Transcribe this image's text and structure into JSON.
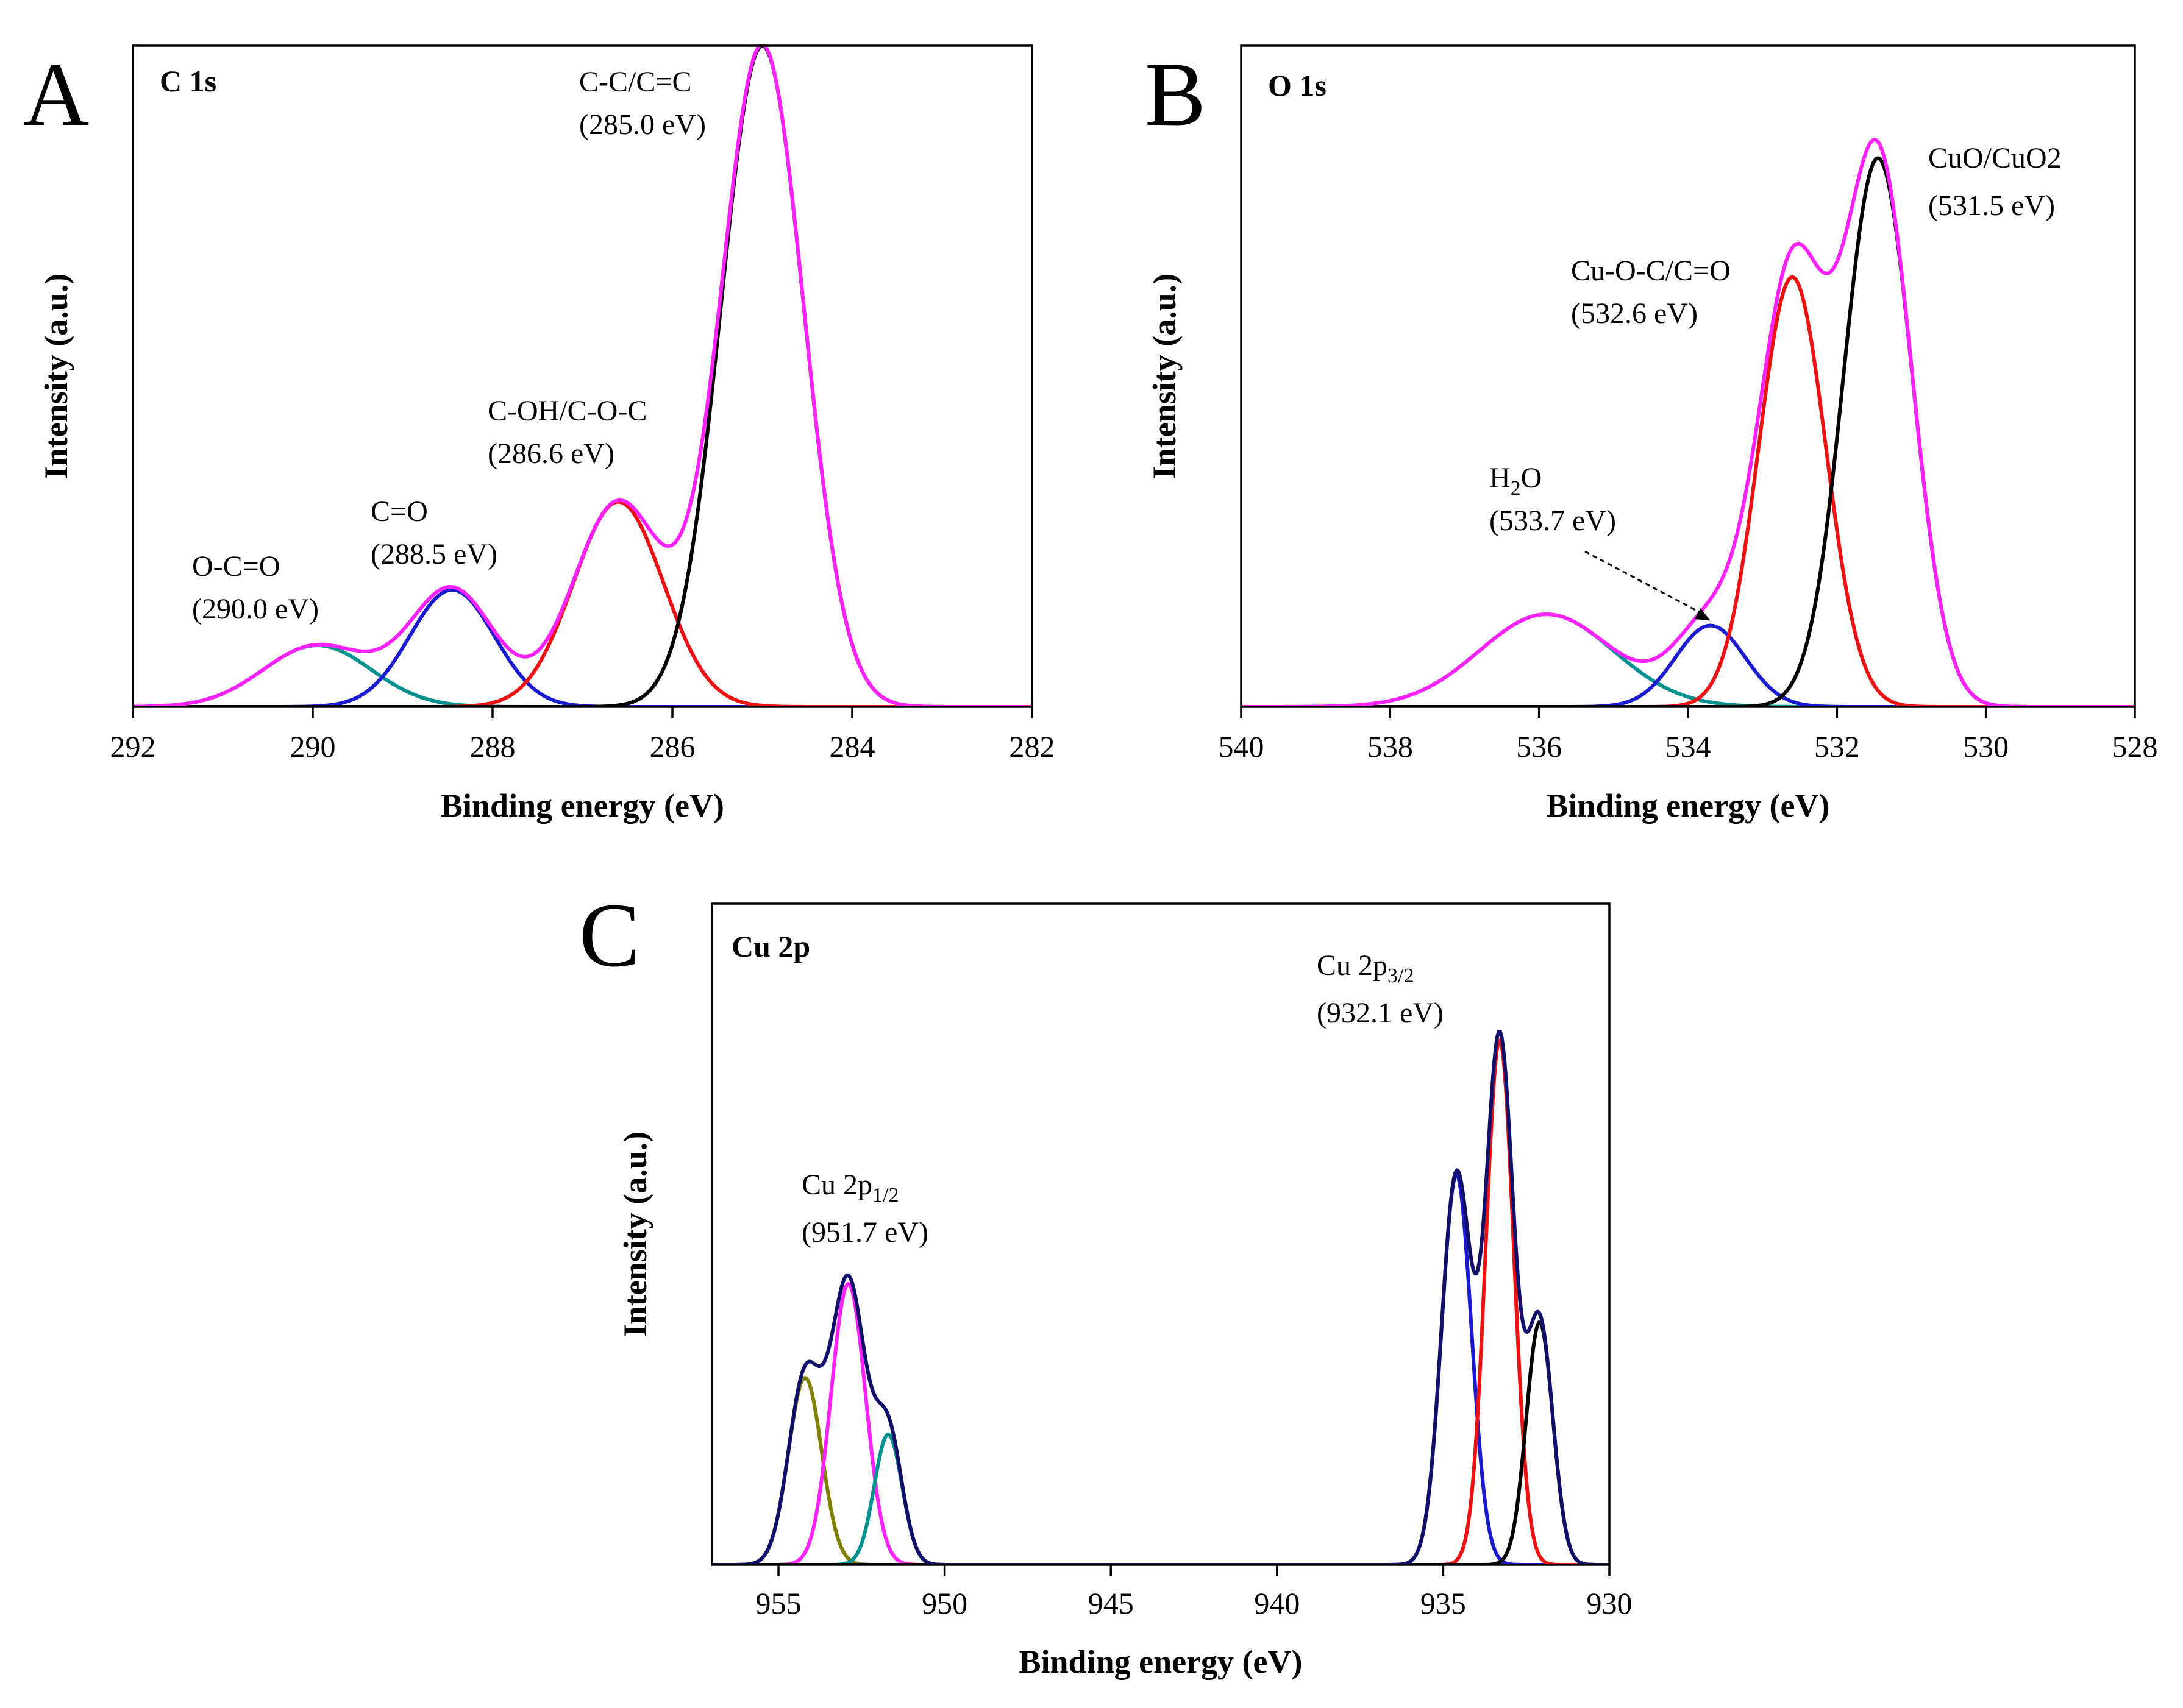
{
  "chart_data": [
    {
      "type": "line",
      "letter": "A",
      "title": "C 1s",
      "xlabel": "Binding energy (eV)",
      "ylabel": "Intensity (a.u.)",
      "xlim": [
        292,
        282
      ],
      "xticks": [
        292,
        290,
        288,
        286,
        284,
        282
      ],
      "ylim": [
        0,
        1.0
      ],
      "grid": false,
      "series": [
        {
          "color": "#009090",
          "peaks": [
            {
              "center": 289.95,
              "height": 0.093,
              "sigma": 0.6
            }
          ]
        },
        {
          "color": "#1a1ad0",
          "peaks": [
            {
              "center": 288.45,
              "height": 0.177,
              "sigma": 0.47
            }
          ]
        },
        {
          "color": "#ee1111",
          "peaks": [
            {
              "center": 286.6,
              "height": 0.31,
              "sigma": 0.5
            }
          ]
        },
        {
          "color": "#000000",
          "peaks": [
            {
              "center": 285.0,
              "height": 1.0,
              "sigma": 0.46
            }
          ]
        },
        {
          "color": "#ff22ff",
          "peaks": [
            {
              "center": 289.95,
              "height": 0.093,
              "sigma": 0.6
            },
            {
              "center": 288.45,
              "height": 0.177,
              "sigma": 0.47
            },
            {
              "center": 286.6,
              "height": 0.31,
              "sigma": 0.5
            },
            {
              "center": 285.0,
              "height": 1.0,
              "sigma": 0.46
            }
          ]
        }
      ],
      "annotations": [
        {
          "name": "O-C=O",
          "lines": [
            "O-C=O",
            "(290.0 eV)"
          ]
        },
        {
          "name": "C=O",
          "lines": [
            "C=O",
            "(288.5 eV)"
          ]
        },
        {
          "name": "C-OH/C-O-C",
          "lines": [
            "C-OH/C-O-C",
            "(286.6 eV)"
          ]
        },
        {
          "name": "C-C/C=C",
          "lines": [
            "C-C/C=C",
            "(285.0 eV)"
          ]
        }
      ]
    },
    {
      "type": "line",
      "letter": "B",
      "title": "O 1s",
      "xlabel": "Binding energy (eV)",
      "ylabel": "Intensity (a.u.)",
      "xlim": [
        540,
        528
      ],
      "xticks": [
        540,
        538,
        536,
        534,
        532,
        530,
        528
      ],
      "ylim": [
        0,
        1.0
      ],
      "grid": false,
      "series": [
        {
          "color": "#009090",
          "peaks": [
            {
              "center": 535.9,
              "height": 0.14,
              "sigma": 0.9
            }
          ]
        },
        {
          "color": "#1a1ad0",
          "peaks": [
            {
              "center": 533.7,
              "height": 0.123,
              "sigma": 0.47
            }
          ]
        },
        {
          "color": "#ee1111",
          "peaks": [
            {
              "center": 532.6,
              "height": 0.65,
              "sigma": 0.45
            }
          ]
        },
        {
          "color": "#000000",
          "peaks": [
            {
              "center": 531.45,
              "height": 0.83,
              "sigma": 0.46
            }
          ]
        },
        {
          "color": "#ff22ff",
          "peaks": [
            {
              "center": 535.9,
              "height": 0.14,
              "sigma": 0.9
            },
            {
              "center": 533.7,
              "height": 0.123,
              "sigma": 0.47
            },
            {
              "center": 532.6,
              "height": 0.65,
              "sigma": 0.45
            },
            {
              "center": 531.45,
              "height": 0.83,
              "sigma": 0.46
            }
          ]
        }
      ],
      "annotations": [
        {
          "name": "H2O",
          "parts": [
            {
              "t": "H"
            },
            {
              "t": "2",
              "sub": true
            },
            {
              "t": "O"
            }
          ],
          "line2": "(533.7 eV)"
        },
        {
          "name": "Cu-O-C/C=O",
          "parts": [
            {
              "t": "Cu-O-C/C=O"
            }
          ],
          "line2": "(532.6 eV)"
        },
        {
          "name": "CuO/CuO2",
          "parts": [
            {
              "t": "CuO/CuO"
            },
            {
              "t": "2"
            }
          ],
          "line2": "(531.5 eV)"
        }
      ]
    },
    {
      "type": "line",
      "letter": "C",
      "title": "Cu 2p",
      "xlabel": "Binding energy (eV)",
      "ylabel": "Intensity (a.u.)",
      "xlim": [
        957,
        930
      ],
      "xticks": [
        955,
        950,
        945,
        940,
        935,
        930
      ],
      "ylim": [
        0,
        1.0
      ],
      "grid": false,
      "series": [
        {
          "color": "#808000",
          "peaks": [
            {
              "center": 954.2,
              "height": 0.283,
              "sigma": 0.5
            }
          ]
        },
        {
          "color": "#ff22ff",
          "peaks": [
            {
              "center": 952.9,
              "height": 0.425,
              "sigma": 0.52
            }
          ]
        },
        {
          "color": "#009090",
          "peaks": [
            {
              "center": 951.7,
              "height": 0.197,
              "sigma": 0.42
            }
          ]
        },
        {
          "color": "#1a1ad0",
          "peaks": [
            {
              "center": 934.6,
              "height": 0.59,
              "sigma": 0.45
            }
          ]
        },
        {
          "color": "#ee1111",
          "peaks": [
            {
              "center": 933.3,
              "height": 0.794,
              "sigma": 0.42
            }
          ]
        },
        {
          "color": "#000000",
          "peaks": [
            {
              "center": 932.1,
              "height": 0.367,
              "sigma": 0.4
            }
          ]
        },
        {
          "color": "#10106a",
          "peaks": [
            {
              "center": 954.2,
              "height": 0.283,
              "sigma": 0.5
            },
            {
              "center": 952.9,
              "height": 0.425,
              "sigma": 0.52
            },
            {
              "center": 951.7,
              "height": 0.197,
              "sigma": 0.42
            },
            {
              "center": 934.6,
              "height": 0.59,
              "sigma": 0.45
            },
            {
              "center": 933.3,
              "height": 0.794,
              "sigma": 0.42
            },
            {
              "center": 932.1,
              "height": 0.367,
              "sigma": 0.4
            }
          ]
        }
      ],
      "annotations": [
        {
          "name": "Cu 2p3/2",
          "parts": [
            {
              "t": "Cu 2p"
            },
            {
              "t": "3/2",
              "sub": true
            }
          ],
          "line2": "(932.1 eV)"
        },
        {
          "name": "Cu 2p1/2",
          "parts": [
            {
              "t": "Cu 2p"
            },
            {
              "t": "1/2",
              "sub": true
            }
          ],
          "line2": "(951.7 eV)"
        }
      ]
    }
  ]
}
